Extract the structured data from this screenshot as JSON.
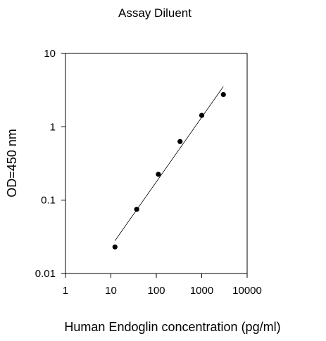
{
  "chart_data": {
    "type": "scatter",
    "title": "Assay Diluent",
    "xlabel": "Human Endoglin  concentration (pg/ml)",
    "ylabel": "OD=450 nm",
    "x_scale": "log",
    "y_scale": "log",
    "xlim": [
      1,
      10000
    ],
    "ylim": [
      0.01,
      10
    ],
    "x_ticks": [
      1,
      10,
      100,
      1000,
      10000
    ],
    "x_tick_labels": [
      "1",
      "10",
      "100",
      "1000",
      "10000"
    ],
    "y_ticks": [
      0.01,
      0.1,
      1,
      10
    ],
    "y_tick_labels": [
      "0.01",
      "0.1",
      "1",
      "10"
    ],
    "grid": false,
    "legend": "none",
    "series": [
      {
        "marker": "circle",
        "color": "#000000",
        "points": [
          {
            "x": 12.3,
            "y": 0.023
          },
          {
            "x": 37,
            "y": 0.075
          },
          {
            "x": 111,
            "y": 0.225
          },
          {
            "x": 333,
            "y": 0.63
          },
          {
            "x": 1000,
            "y": 1.43
          },
          {
            "x": 3000,
            "y": 2.75
          }
        ]
      }
    ],
    "fit_line": {
      "color": "#000000",
      "points": [
        {
          "x": 12.3,
          "y": 0.028
        },
        {
          "x": 3000,
          "y": 3.55
        }
      ]
    }
  }
}
